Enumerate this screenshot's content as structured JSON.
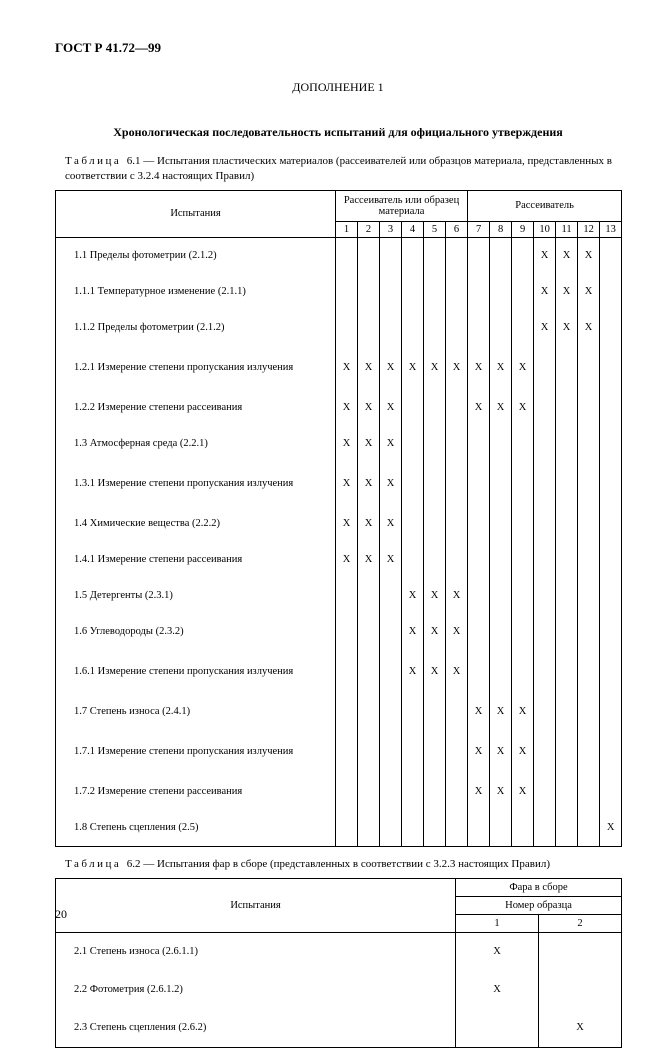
{
  "doc_header": "ГОСТ Р 41.72—99",
  "supplement": "ДОПОЛНЕНИЕ 1",
  "title": "Хронологическая последовательность испытаний для официального утверждения",
  "t1": {
    "caption_prefix": "Таблица",
    "caption": "6.1 — Испытания пластических материалов (рассеивателей или образцов материала, представ­ленных в соответствии с 3.2.4 настоящих Правил)",
    "col_tests": "Испытания",
    "col_group1": "Рассеиватель или образец материала",
    "col_group2": "Рассеиватель",
    "nums": [
      "1",
      "2",
      "3",
      "4",
      "5",
      "6",
      "7",
      "8",
      "9",
      "10",
      "11",
      "12",
      "13"
    ],
    "rows": [
      {
        "label": "1.1 Пределы фотометрии (2.1.2)",
        "cells": [
          "",
          "",
          "",
          "",
          "",
          "",
          "",
          "",
          "",
          "X",
          "X",
          "X",
          ""
        ]
      },
      {
        "label": "1.1.1 Температурное изменение (2.1.1)",
        "cells": [
          "",
          "",
          "",
          "",
          "",
          "",
          "",
          "",
          "",
          "X",
          "X",
          "X",
          ""
        ]
      },
      {
        "label": "1.1.2 Пределы фотометрии (2.1.2)",
        "cells": [
          "",
          "",
          "",
          "",
          "",
          "",
          "",
          "",
          "",
          "X",
          "X",
          "X",
          ""
        ]
      },
      {
        "label": "1.2.1 Измерение степени пропускания излу­чения",
        "tall": true,
        "cells": [
          "X",
          "X",
          "X",
          "X",
          "X",
          "X",
          "X",
          "X",
          "X",
          "",
          "",
          "",
          ""
        ]
      },
      {
        "label": "1.2.2 Измерение степени рассеивания",
        "cells": [
          "X",
          "X",
          "X",
          "",
          "",
          "",
          "X",
          "X",
          "X",
          "",
          "",
          "",
          ""
        ]
      },
      {
        "label": "1.3 Атмосферная среда (2.2.1)",
        "cells": [
          "X",
          "X",
          "X",
          "",
          "",
          "",
          "",
          "",
          "",
          "",
          "",
          "",
          ""
        ]
      },
      {
        "label": "1.3.1 Измерение степени пропускания излу­чения",
        "tall": true,
        "cells": [
          "X",
          "X",
          "X",
          "",
          "",
          "",
          "",
          "",
          "",
          "",
          "",
          "",
          ""
        ]
      },
      {
        "label": "1.4 Химические вещества (2.2.2)",
        "cells": [
          "X",
          "X",
          "X",
          "",
          "",
          "",
          "",
          "",
          "",
          "",
          "",
          "",
          ""
        ]
      },
      {
        "label": "1.4.1 Измерение степени рассеивания",
        "cells": [
          "X",
          "X",
          "X",
          "",
          "",
          "",
          "",
          "",
          "",
          "",
          "",
          "",
          ""
        ]
      },
      {
        "label": "1.5 Детергенты (2.3.1)",
        "cells": [
          "",
          "",
          "",
          "X",
          "X",
          "X",
          "",
          "",
          "",
          "",
          "",
          "",
          ""
        ]
      },
      {
        "label": "1.6 Углеводороды (2.3.2)",
        "cells": [
          "",
          "",
          "",
          "X",
          "X",
          "X",
          "",
          "",
          "",
          "",
          "",
          "",
          ""
        ]
      },
      {
        "label": "1.6.1 Измерение степени пропускания излу­чения",
        "tall": true,
        "cells": [
          "",
          "",
          "",
          "X",
          "X",
          "X",
          "",
          "",
          "",
          "",
          "",
          "",
          ""
        ]
      },
      {
        "label": "1.7 Степень износа (2.4.1)",
        "cells": [
          "",
          "",
          "",
          "",
          "",
          "",
          "X",
          "X",
          "X",
          "",
          "",
          "",
          ""
        ]
      },
      {
        "label": "1.7.1 Измерение степени пропускания излу­чения",
        "tall": true,
        "cells": [
          "",
          "",
          "",
          "",
          "",
          "",
          "X",
          "X",
          "X",
          "",
          "",
          "",
          ""
        ]
      },
      {
        "label": "1.7.2 Измерение степени рассеивания",
        "cells": [
          "",
          "",
          "",
          "",
          "",
          "",
          "X",
          "X",
          "X",
          "",
          "",
          "",
          ""
        ]
      },
      {
        "label": "1.8 Степень сцепления (2.5)",
        "cells": [
          "",
          "",
          "",
          "",
          "",
          "",
          "",
          "",
          "",
          "",
          "",
          "",
          "X"
        ]
      }
    ]
  },
  "t2": {
    "caption_prefix": "Таблица",
    "caption": "6.2 — Испытания фар в сборе (представленных в соответствии с 3.2.3 настоящих Правил)",
    "col_tests": "Испытания",
    "col_group": "Фара в сборе",
    "col_sub": "Номер образца",
    "nums": [
      "1",
      "2"
    ],
    "rows": [
      {
        "label": "2.1 Степень износа (2.6.1.1)",
        "cells": [
          "X",
          ""
        ]
      },
      {
        "label": "2.2 Фотометрия (2.6.1.2)",
        "cells": [
          "X",
          ""
        ]
      },
      {
        "label": "2.3 Степень сцепления (2.6.2)",
        "cells": [
          "",
          "X"
        ]
      }
    ]
  },
  "page_number": "20"
}
